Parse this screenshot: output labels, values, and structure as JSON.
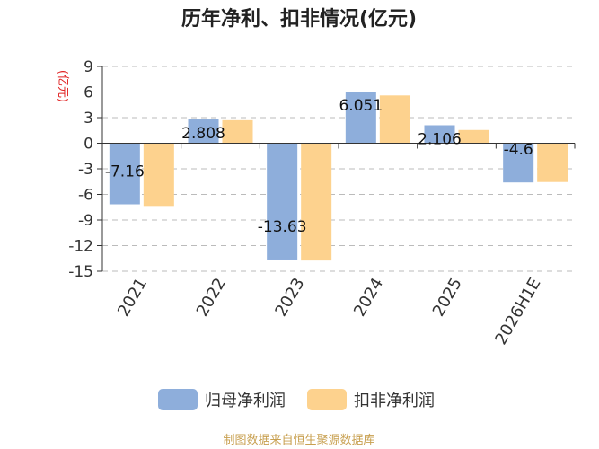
{
  "chart_data": {
    "type": "bar",
    "title": "历年净利、扣非情况(亿元)",
    "ylabel": "(亿元)",
    "categories": [
      "2021",
      "2022",
      "2023",
      "2024",
      "2025",
      "2026H1E"
    ],
    "series": [
      {
        "name": "归母净利润",
        "values": [
          -7.16,
          2.808,
          -13.63,
          6.051,
          2.106,
          -4.6
        ],
        "color": "#8eaedb",
        "labels": [
          "-7.16",
          "2.808",
          "-13.63",
          "6.051",
          "2.106",
          "-4.6"
        ]
      },
      {
        "name": "扣非净利润",
        "values": [
          -7.35,
          2.7,
          -13.75,
          5.6,
          1.55,
          -4.55
        ],
        "color": "#fdd28e"
      }
    ],
    "ylim": [
      -15,
      9
    ],
    "yticks": [
      9,
      6,
      3,
      0,
      -3,
      -6,
      -9,
      -12,
      -15
    ],
    "grid": true,
    "legend_position": "bottom"
  },
  "source": "制图数据来自恒生聚源数据库",
  "colors": {
    "ylabel": "#e02020",
    "source": "#c8a050",
    "axis": "#333333",
    "grid": "#bbbbbb"
  }
}
